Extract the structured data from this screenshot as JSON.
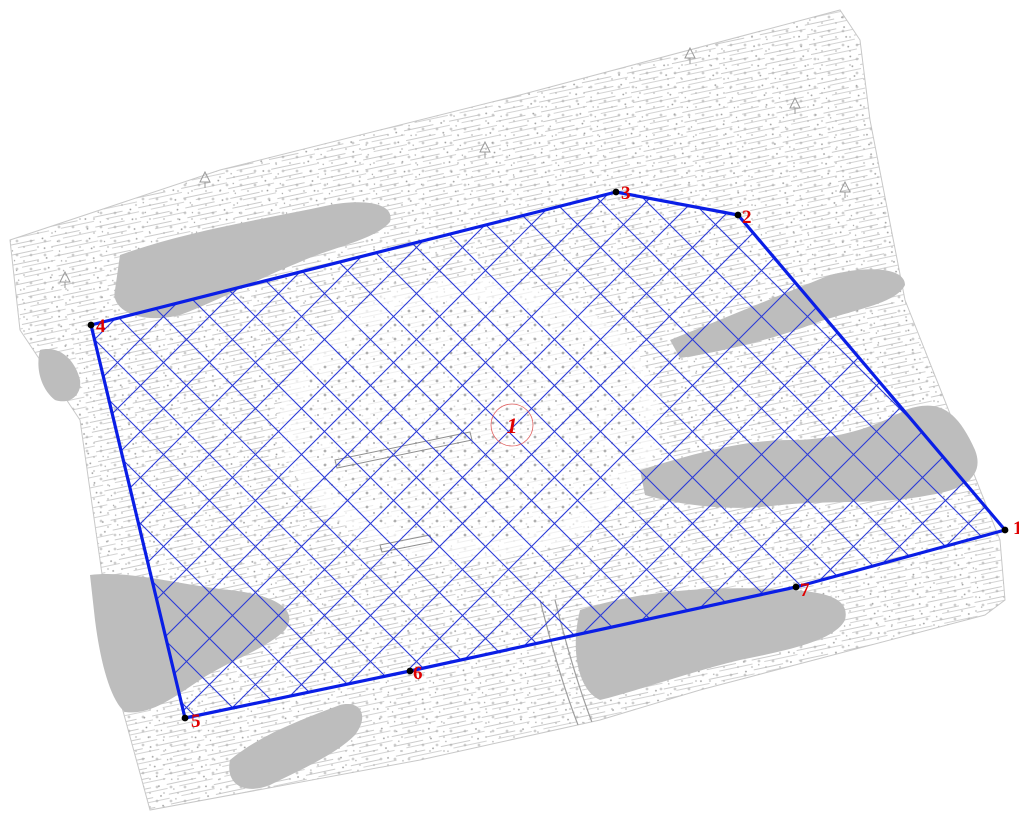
{
  "map": {
    "colors": {
      "boundary": "#0a1ee6",
      "hatch": "#2a3ad8",
      "vertex": "#000000",
      "vertex_label": "#e00000",
      "parcel_label": "#e00000",
      "water": "#bdbdbd",
      "terrain_lines": "#b3b3b3",
      "background": "#ffffff"
    },
    "vertices": [
      {
        "id": "1",
        "label": "1"
      },
      {
        "id": "2",
        "label": "2"
      },
      {
        "id": "3",
        "label": "3"
      },
      {
        "id": "4",
        "label": "4"
      },
      {
        "id": "5",
        "label": "5"
      },
      {
        "id": "6",
        "label": "6"
      },
      {
        "id": "7",
        "label": "7"
      }
    ],
    "parcel": {
      "label": "1"
    },
    "hatch_style": "diagonal cross-hatch",
    "background_style": "topographic survey base map"
  }
}
